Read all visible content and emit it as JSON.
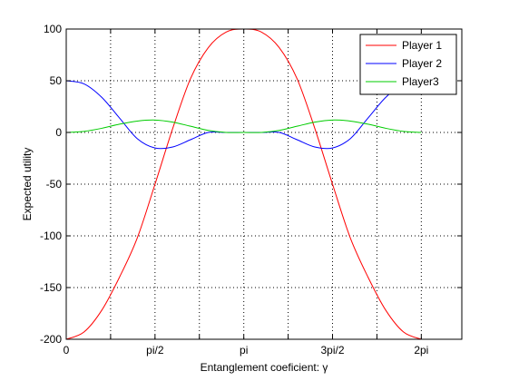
{
  "chart_data": {
    "type": "line",
    "xlabel": "Entanglement coeficient: γ",
    "ylabel": "Expected utility",
    "xlim": [
      0,
      7.0
    ],
    "ylim": [
      -200,
      100
    ],
    "x_ticks": [
      {
        "value": 0,
        "label": "0"
      },
      {
        "value": 0.785,
        "label": ""
      },
      {
        "value": 1.571,
        "label": "pi/2"
      },
      {
        "value": 2.356,
        "label": ""
      },
      {
        "value": 3.142,
        "label": "pi"
      },
      {
        "value": 3.927,
        "label": ""
      },
      {
        "value": 4.712,
        "label": "3pi/2"
      },
      {
        "value": 5.498,
        "label": ""
      },
      {
        "value": 6.283,
        "label": "2pi"
      }
    ],
    "y_ticks": [
      {
        "value": 100,
        "label": "100"
      },
      {
        "value": 50,
        "label": "50"
      },
      {
        "value": 0,
        "label": "0"
      },
      {
        "value": -50,
        "label": "-50"
      },
      {
        "value": -100,
        "label": "-100"
      },
      {
        "value": -150,
        "label": "-150"
      },
      {
        "value": -200,
        "label": "-200"
      }
    ],
    "grid": true,
    "legend_position": "top-right",
    "x": [
      0,
      0.314,
      0.628,
      0.942,
      1.257,
      1.571,
      1.885,
      2.199,
      2.513,
      2.827,
      3.142,
      3.456,
      3.77,
      4.084,
      4.398,
      4.712,
      5.027,
      5.341,
      5.655,
      5.969,
      6.283
    ],
    "series": [
      {
        "name": "Player 1",
        "color": "#ff0000",
        "values": [
          -200,
          -193,
          -172,
          -140,
          -102,
          -50,
          4,
          52,
          82,
          97,
          100,
          97,
          82,
          52,
          4,
          -50,
          -102,
          -140,
          -172,
          -193,
          -200
        ]
      },
      {
        "name": "Player 2",
        "color": "#0000ff",
        "values": [
          50,
          47,
          34,
          14,
          -6,
          -15,
          -14,
          -7,
          0,
          0,
          0,
          0,
          0,
          -7,
          -14,
          -15,
          -6,
          14,
          34,
          47,
          50
        ]
      },
      {
        "name": "Player3",
        "color": "#00cc00",
        "values": [
          0,
          1,
          4,
          8,
          11,
          12,
          10,
          6,
          2,
          0,
          0,
          0,
          2,
          6,
          10,
          12,
          11,
          8,
          4,
          1,
          0
        ]
      }
    ]
  }
}
